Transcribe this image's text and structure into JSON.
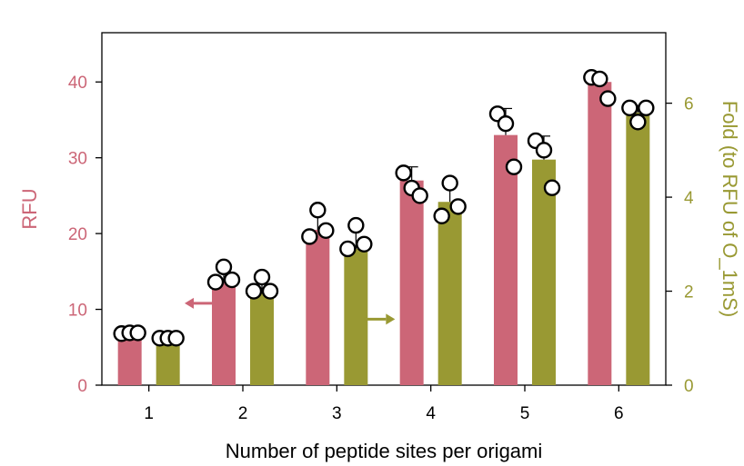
{
  "chart_data": {
    "type": "bar",
    "categories": [
      "1",
      "2",
      "3",
      "4",
      "5",
      "6"
    ],
    "xlabel": "Number of peptide sites per origami",
    "ylabel_left": "RFU",
    "ylabel_right": "Fold (to RFU of O_1mS)",
    "ylim_left": [
      0,
      46.5
    ],
    "ylim_right": [
      0,
      7.5
    ],
    "yticks_left": [
      "0",
      "10",
      "20",
      "30",
      "40"
    ],
    "yticks_right": [
      "0",
      "2",
      "4",
      "6"
    ],
    "colors": {
      "rfu": "#cc6677",
      "fold": "#999933"
    },
    "series": [
      {
        "axis": "left",
        "color": "#cc6677",
        "values": [
          6.8,
          13.8,
          20.5,
          27.0,
          33.0,
          40.0
        ],
        "error_top": [
          6.9,
          15.5,
          23.0,
          28.8,
          36.5,
          41.0
        ],
        "points": [
          [
            6.8,
            6.9,
            6.9
          ],
          [
            13.6,
            15.6,
            13.9
          ],
          [
            19.6,
            23.1,
            20.4
          ],
          [
            28.0,
            26.0,
            25.0
          ],
          [
            35.8,
            34.5,
            28.8
          ],
          [
            40.6,
            40.4,
            37.8
          ]
        ]
      },
      {
        "axis": "right",
        "color": "#999933",
        "values": [
          1.0,
          2.0,
          2.9,
          3.9,
          4.8,
          5.8
        ],
        "error_top": [
          1.02,
          2.15,
          3.3,
          4.4,
          5.3,
          5.95
        ],
        "points": [
          [
            1.0,
            1.0,
            1.0
          ],
          [
            2.0,
            2.3,
            2.0
          ],
          [
            2.9,
            3.4,
            3.0
          ],
          [
            3.6,
            4.3,
            3.8
          ],
          [
            5.2,
            5.0,
            4.2
          ],
          [
            5.9,
            5.6,
            5.9
          ]
        ]
      }
    ],
    "arrows": [
      {
        "category_index": 1,
        "side": "left",
        "direction": "left",
        "value": 10.8
      },
      {
        "category_index": 2,
        "side": "right",
        "direction": "right",
        "value": 8.7
      }
    ]
  }
}
